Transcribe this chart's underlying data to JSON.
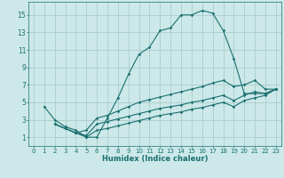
{
  "xlabel": "Humidex (Indice chaleur)",
  "bg_color": "#cce8e8",
  "grid_color": "#aacccc",
  "line_color": "#1a7070",
  "xlim": [
    -0.5,
    23.5
  ],
  "ylim": [
    0,
    16.5
  ],
  "xticks": [
    0,
    1,
    2,
    3,
    4,
    5,
    6,
    7,
    8,
    9,
    10,
    11,
    12,
    13,
    14,
    15,
    16,
    17,
    18,
    19,
    20,
    21,
    22,
    23
  ],
  "yticks": [
    1,
    3,
    5,
    7,
    9,
    11,
    13,
    15
  ],
  "curve1_x": [
    1,
    2,
    3,
    4,
    5,
    6,
    7,
    8,
    9,
    10,
    11,
    12,
    13,
    14,
    15,
    16,
    17,
    18,
    19,
    20,
    21,
    22,
    23
  ],
  "curve1_y": [
    4.5,
    3.0,
    2.2,
    1.8,
    1.0,
    1.0,
    3.2,
    5.5,
    8.2,
    10.5,
    11.3,
    13.2,
    13.5,
    15.0,
    15.0,
    15.5,
    15.2,
    13.2,
    10.0,
    6.0,
    6.0,
    6.0,
    6.5
  ],
  "curve2_x": [
    2,
    3,
    4,
    5,
    6,
    7,
    8,
    9,
    10,
    11,
    12,
    13,
    14,
    15,
    16,
    17,
    18,
    19,
    20,
    21,
    22,
    23
  ],
  "curve2_y": [
    2.5,
    2.0,
    1.5,
    1.8,
    3.2,
    3.5,
    4.0,
    4.5,
    5.0,
    5.3,
    5.6,
    5.9,
    6.2,
    6.5,
    6.8,
    7.2,
    7.5,
    6.8,
    7.0,
    7.5,
    6.5,
    6.5
  ],
  "curve3_x": [
    2,
    3,
    4,
    5,
    6,
    7,
    8,
    9,
    10,
    11,
    12,
    13,
    14,
    15,
    16,
    17,
    18,
    19,
    20,
    21,
    22,
    23
  ],
  "curve3_y": [
    2.5,
    2.0,
    1.5,
    1.2,
    2.5,
    2.8,
    3.1,
    3.4,
    3.7,
    4.0,
    4.3,
    4.5,
    4.7,
    5.0,
    5.2,
    5.5,
    5.8,
    5.2,
    5.8,
    6.2,
    6.0,
    6.5
  ],
  "curve4_x": [
    2,
    3,
    4,
    5,
    6,
    7,
    8,
    9,
    10,
    11,
    12,
    13,
    14,
    15,
    16,
    17,
    18,
    19,
    20,
    21,
    22,
    23
  ],
  "curve4_y": [
    2.5,
    2.0,
    1.5,
    1.0,
    1.8,
    2.0,
    2.3,
    2.6,
    2.9,
    3.2,
    3.5,
    3.7,
    3.9,
    4.2,
    4.4,
    4.7,
    5.0,
    4.5,
    5.2,
    5.5,
    5.8,
    6.5
  ]
}
